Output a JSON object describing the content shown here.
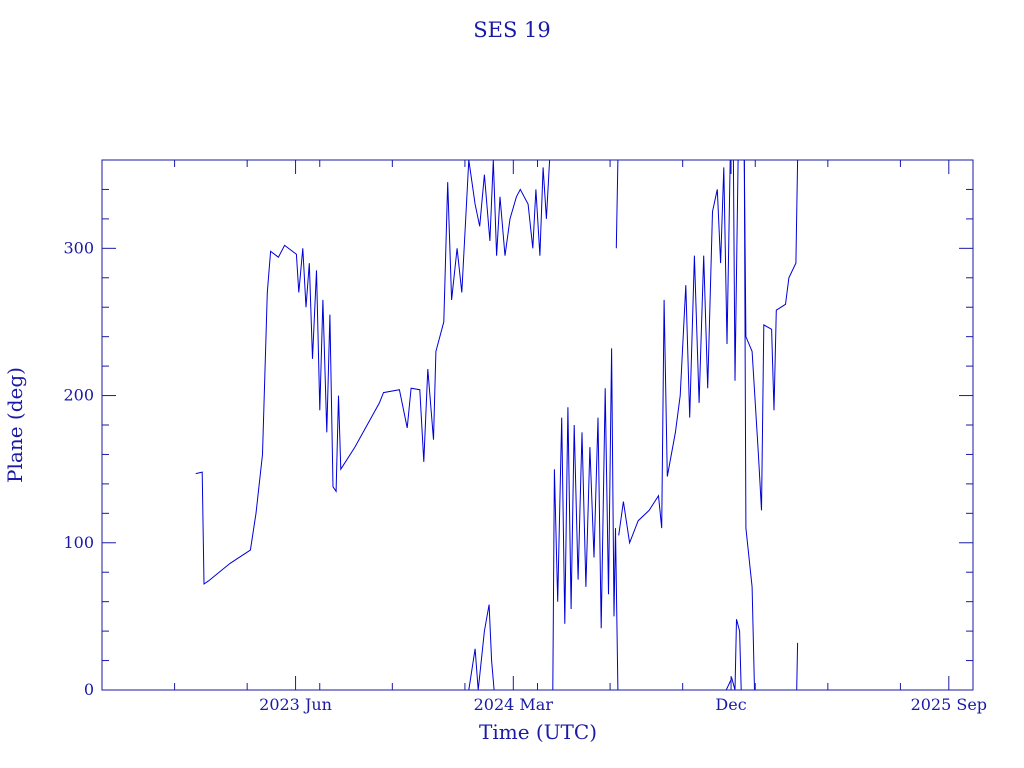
{
  "chart_data": {
    "type": "line",
    "title": "SES 19",
    "xlabel": "Time (UTC)",
    "ylabel": "Plane (deg)",
    "x_unit": "month",
    "xlim": [
      "2022-10",
      "2025-10"
    ],
    "ylim": [
      0,
      360
    ],
    "x_ticks": [
      {
        "label": "2023 Jun",
        "x": "2023-06"
      },
      {
        "label": "2024 Mar",
        "x": "2024-03"
      },
      {
        "label": "Dec",
        "x": "2024-12"
      },
      {
        "label": "2025 Sep",
        "x": "2025-09"
      }
    ],
    "y_ticks": [
      0,
      100,
      200,
      300
    ],
    "grid": false,
    "color": "#0000d8",
    "series": [
      {
        "points": [
          [
            "2023-01-28",
            147
          ],
          [
            "2023-02-05",
            148
          ],
          [
            "2023-02-07",
            72
          ],
          [
            "2023-02-12",
            74
          ],
          [
            "2023-03-10",
            86
          ],
          [
            "2023-04-05",
            95
          ],
          [
            "2023-04-12",
            120
          ],
          [
            "2023-04-20",
            160
          ],
          [
            "2023-04-26",
            270
          ],
          [
            "2023-04-30",
            298
          ],
          [
            "2023-05-10",
            294
          ],
          [
            "2023-05-18",
            302
          ],
          [
            "2023-06-02",
            296
          ],
          [
            "2023-06-05",
            270
          ],
          [
            "2023-06-10",
            300
          ],
          [
            "2023-06-14",
            260
          ],
          [
            "2023-06-18",
            290
          ],
          [
            "2023-06-22",
            225
          ],
          [
            "2023-06-27",
            285
          ],
          [
            "2023-07-01",
            190
          ],
          [
            "2023-07-05",
            265
          ],
          [
            "2023-07-10",
            175
          ],
          [
            "2023-07-14",
            255
          ],
          [
            "2023-07-18",
            138
          ],
          [
            "2023-07-22",
            135
          ],
          [
            "2023-07-25",
            200
          ],
          [
            "2023-07-28",
            150
          ],
          [
            "2023-08-15",
            165
          ],
          [
            "2023-09-15",
            195
          ],
          [
            "2023-09-20",
            202
          ],
          [
            "2023-10-10",
            204
          ],
          [
            "2023-10-20",
            178
          ],
          [
            "2023-10-25",
            205
          ],
          [
            "2023-11-05",
            204
          ],
          [
            "2023-11-10",
            155
          ],
          [
            "2023-11-15",
            218
          ],
          [
            "2023-11-22",
            170
          ],
          [
            "2023-11-25",
            230
          ],
          [
            "2023-12-05",
            250
          ],
          [
            "2023-12-10",
            345
          ],
          [
            "2023-12-15",
            265
          ],
          [
            "2023-12-22",
            300
          ],
          [
            "2023-12-28",
            270
          ],
          [
            "2024-01-02",
            320
          ],
          [
            "2024-01-06",
            360
          ]
        ]
      },
      {
        "points": [
          [
            "2024-01-06",
            0
          ],
          [
            "2024-01-14",
            28
          ],
          [
            "2024-01-18",
            0
          ],
          [
            "2024-01-26",
            40
          ],
          [
            "2024-02-01",
            58
          ],
          [
            "2024-02-04",
            20
          ],
          [
            "2024-02-07",
            0
          ]
        ]
      },
      {
        "points": [
          [
            "2024-01-06",
            360
          ],
          [
            "2024-01-14",
            330
          ],
          [
            "2024-01-20",
            315
          ],
          [
            "2024-01-26",
            350
          ],
          [
            "2024-02-02",
            305
          ],
          [
            "2024-02-06",
            360
          ],
          [
            "2024-02-10",
            295
          ],
          [
            "2024-02-14",
            335
          ],
          [
            "2024-02-20",
            295
          ],
          [
            "2024-02-26",
            320
          ],
          [
            "2024-03-05",
            335
          ],
          [
            "2024-03-10",
            340
          ],
          [
            "2024-03-20",
            330
          ],
          [
            "2024-03-26",
            300
          ],
          [
            "2024-03-30",
            340
          ],
          [
            "2024-04-04",
            295
          ],
          [
            "2024-04-08",
            355
          ],
          [
            "2024-04-12",
            320
          ],
          [
            "2024-04-16",
            360
          ]
        ]
      },
      {
        "points": [
          [
            "2024-04-20",
            0
          ],
          [
            "2024-04-22",
            150
          ],
          [
            "2024-04-26",
            60
          ],
          [
            "2024-05-01",
            185
          ],
          [
            "2024-05-05",
            45
          ],
          [
            "2024-05-09",
            192
          ],
          [
            "2024-05-13",
            55
          ],
          [
            "2024-05-17",
            180
          ],
          [
            "2024-05-22",
            75
          ],
          [
            "2024-05-27",
            175
          ],
          [
            "2024-06-01",
            70
          ],
          [
            "2024-06-06",
            165
          ],
          [
            "2024-06-11",
            90
          ],
          [
            "2024-06-16",
            185
          ],
          [
            "2024-06-20",
            42
          ],
          [
            "2024-06-25",
            205
          ],
          [
            "2024-06-29",
            65
          ],
          [
            "2024-07-03",
            232
          ],
          [
            "2024-07-06",
            50
          ],
          [
            "2024-07-08",
            110
          ],
          [
            "2024-07-11",
            0
          ]
        ]
      },
      {
        "points": [
          [
            "2024-07-09",
            300
          ],
          [
            "2024-07-11",
            360
          ]
        ]
      },
      {
        "points": [
          [
            "2024-07-12",
            105
          ],
          [
            "2024-07-18",
            128
          ],
          [
            "2024-07-26",
            100
          ],
          [
            "2024-08-06",
            115
          ],
          [
            "2024-08-20",
            122
          ],
          [
            "2024-09-01",
            132
          ],
          [
            "2024-09-05",
            110
          ],
          [
            "2024-09-08",
            265
          ],
          [
            "2024-09-12",
            145
          ],
          [
            "2024-09-22",
            175
          ],
          [
            "2024-09-28",
            200
          ],
          [
            "2024-10-05",
            275
          ],
          [
            "2024-10-10",
            185
          ],
          [
            "2024-10-16",
            295
          ],
          [
            "2024-10-22",
            195
          ],
          [
            "2024-10-28",
            295
          ],
          [
            "2024-11-02",
            205
          ],
          [
            "2024-11-08",
            325
          ],
          [
            "2024-11-14",
            340
          ],
          [
            "2024-11-18",
            290
          ],
          [
            "2024-11-22",
            355
          ],
          [
            "2024-11-26",
            235
          ],
          [
            "2024-11-30",
            360
          ]
        ]
      },
      {
        "points": [
          [
            "2024-12-04",
            360
          ],
          [
            "2024-12-06",
            210
          ],
          [
            "2024-12-10",
            360
          ],
          [
            "2024-12-18",
            360
          ],
          [
            "2024-12-20",
            240
          ],
          [
            "2024-12-28",
            230
          ],
          [
            "2025-01-05",
            160
          ],
          [
            "2025-01-09",
            122
          ],
          [
            "2025-01-12",
            248
          ],
          [
            "2025-01-22",
            245
          ],
          [
            "2025-01-25",
            190
          ],
          [
            "2025-01-28",
            258
          ],
          [
            "2025-02-08",
            262
          ],
          [
            "2025-02-12",
            280
          ],
          [
            "2025-02-20",
            290
          ],
          [
            "2025-02-22",
            360
          ]
        ]
      },
      {
        "points": [
          [
            "2024-12-18",
            360
          ],
          [
            "2024-12-20",
            110
          ],
          [
            "2024-12-28",
            70
          ],
          [
            "2024-12-31",
            0
          ]
        ]
      },
      {
        "points": [
          [
            "2024-11-25",
            0
          ],
          [
            "2024-12-02",
            8
          ],
          [
            "2024-12-06",
            0
          ],
          [
            "2024-12-08",
            48
          ],
          [
            "2024-12-12",
            40
          ],
          [
            "2024-12-14",
            0
          ]
        ]
      },
      {
        "points": [
          [
            "2025-02-21",
            0
          ],
          [
            "2025-02-22",
            32
          ]
        ]
      }
    ]
  }
}
